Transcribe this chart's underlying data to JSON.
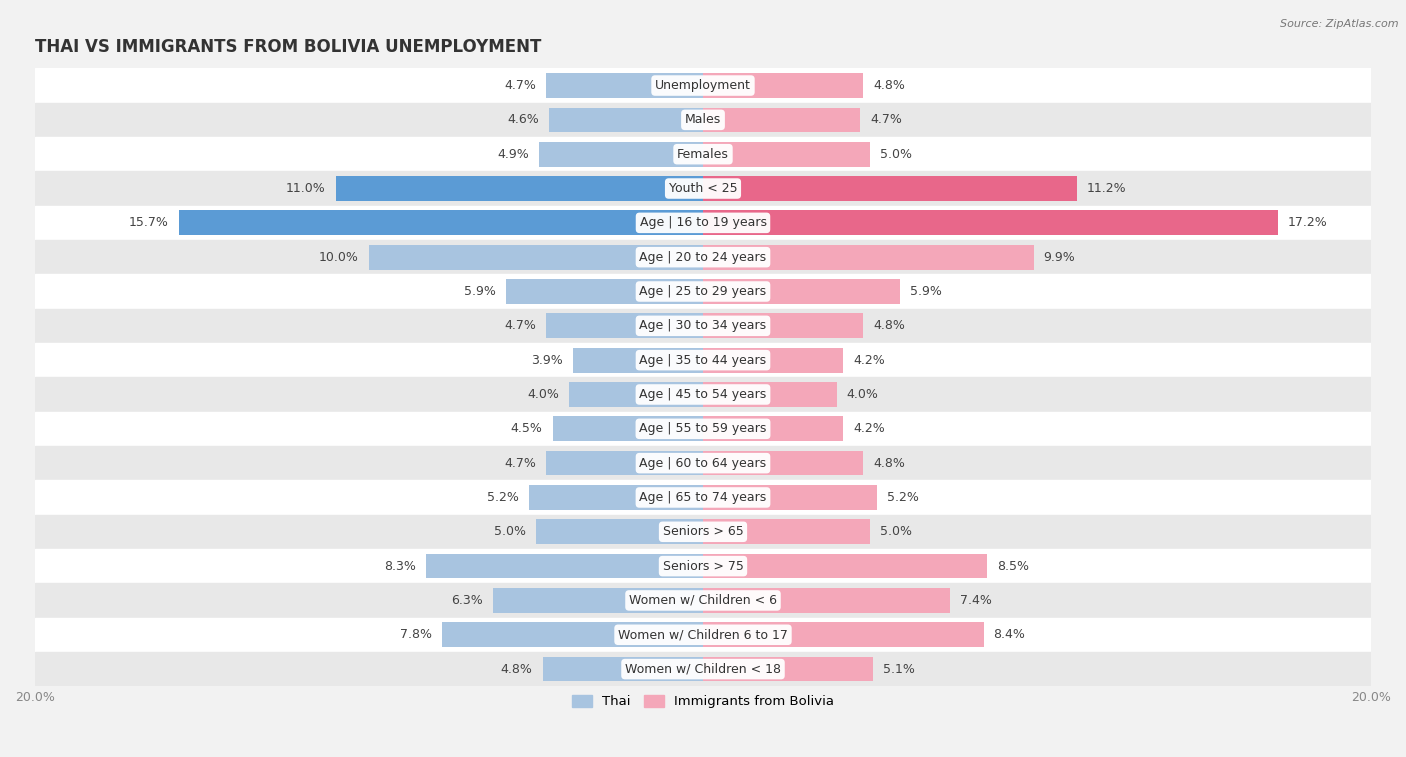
{
  "title": "THAI VS IMMIGRANTS FROM BOLIVIA UNEMPLOYMENT",
  "source": "Source: ZipAtlas.com",
  "categories": [
    "Unemployment",
    "Males",
    "Females",
    "Youth < 25",
    "Age | 16 to 19 years",
    "Age | 20 to 24 years",
    "Age | 25 to 29 years",
    "Age | 30 to 34 years",
    "Age | 35 to 44 years",
    "Age | 45 to 54 years",
    "Age | 55 to 59 years",
    "Age | 60 to 64 years",
    "Age | 65 to 74 years",
    "Seniors > 65",
    "Seniors > 75",
    "Women w/ Children < 6",
    "Women w/ Children 6 to 17",
    "Women w/ Children < 18"
  ],
  "thai_values": [
    4.7,
    4.6,
    4.9,
    11.0,
    15.7,
    10.0,
    5.9,
    4.7,
    3.9,
    4.0,
    4.5,
    4.7,
    5.2,
    5.0,
    8.3,
    6.3,
    7.8,
    4.8
  ],
  "bolivia_values": [
    4.8,
    4.7,
    5.0,
    11.2,
    17.2,
    9.9,
    5.9,
    4.8,
    4.2,
    4.0,
    4.2,
    4.8,
    5.2,
    5.0,
    8.5,
    7.4,
    8.4,
    5.1
  ],
  "thai_color": "#a8c4e0",
  "bolivia_color": "#f4a7b9",
  "thai_highlight_color": "#5b9bd5",
  "bolivia_highlight_color": "#e8678a",
  "highlight_rows": [
    3,
    4
  ],
  "background_color": "#f2f2f2",
  "row_color_light": "#ffffff",
  "row_color_dark": "#e8e8e8",
  "xlim": 20.0,
  "legend_thai": "Thai",
  "legend_bolivia": "Immigrants from Bolivia",
  "title_fontsize": 12,
  "label_fontsize": 9,
  "value_fontsize": 9,
  "source_fontsize": 8
}
